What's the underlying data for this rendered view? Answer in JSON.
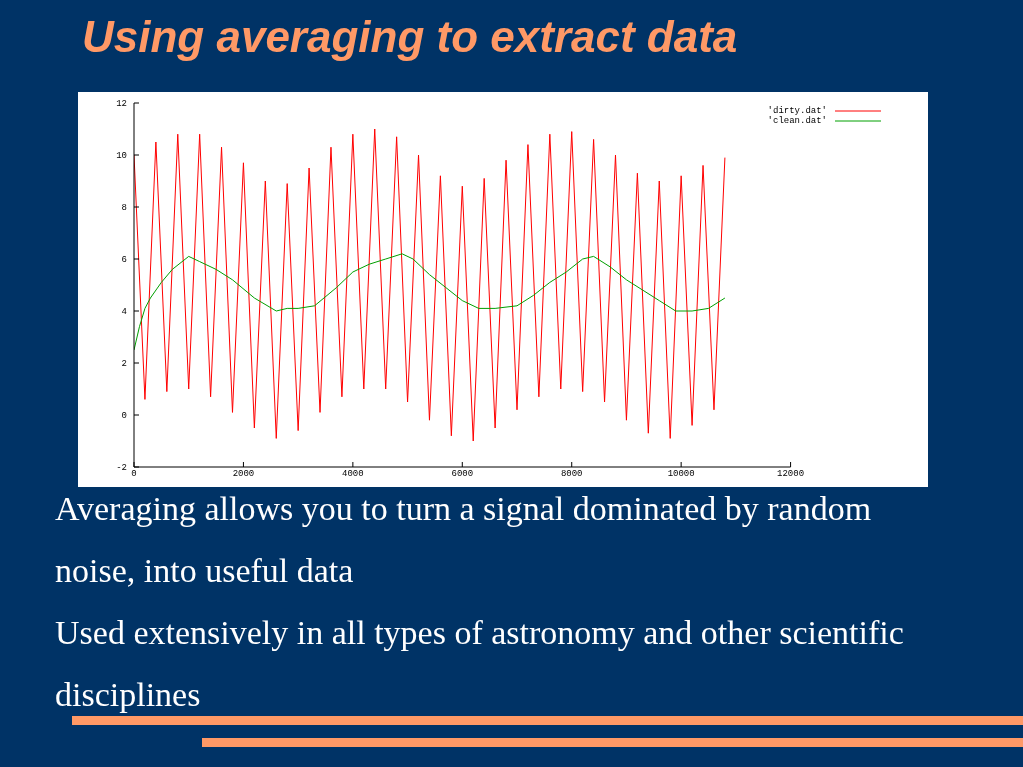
{
  "chart_data": {
    "type": "line",
    "title": "Using averaging to extract data",
    "annotations": [
      "Averaging allows you to turn a signal dominated by random noise, into useful data",
      "Used extensively in all types of astronomy and other scientific disciplines"
    ],
    "xlim": [
      0,
      12000
    ],
    "xticks": [
      0,
      2000,
      4000,
      6000,
      8000,
      10000,
      12000
    ],
    "ylim": [
      -2,
      12
    ],
    "yticks": [
      -2,
      0,
      2,
      4,
      6,
      8,
      10,
      12
    ],
    "legend": "top right",
    "series": [
      {
        "name": "'dirty.dat'",
        "color": "#ff0000",
        "x": [
          0,
          200,
          400,
          600,
          800,
          1000,
          1200,
          1400,
          1600,
          1800,
          2000,
          2200,
          2400,
          2600,
          2800,
          3000,
          3200,
          3400,
          3600,
          3800,
          4000,
          4200,
          4400,
          4600,
          4800,
          5000,
          5200,
          5400,
          5600,
          5800,
          6000,
          6200,
          6400,
          6600,
          6800,
          7000,
          7200,
          7400,
          7600,
          7800,
          8000,
          8200,
          8400,
          8600,
          8800,
          9000,
          9200,
          9400,
          9600,
          9800,
          10000,
          10200,
          10400,
          10600,
          10800
        ],
        "values": [
          10.0,
          0.6,
          10.5,
          0.9,
          10.8,
          1.0,
          10.8,
          0.7,
          10.3,
          0.1,
          9.7,
          -0.5,
          9.0,
          -0.9,
          8.9,
          -0.6,
          9.5,
          0.1,
          10.3,
          0.7,
          10.8,
          1.0,
          11.0,
          1.0,
          10.7,
          0.5,
          10.0,
          -0.2,
          9.2,
          -0.8,
          8.8,
          -1.0,
          9.1,
          -0.5,
          9.8,
          0.2,
          10.4,
          0.7,
          10.8,
          1.0,
          10.9,
          0.9,
          10.6,
          0.5,
          10.0,
          -0.2,
          9.3,
          -0.7,
          9.0,
          -0.9,
          9.2,
          -0.4,
          9.6,
          0.2,
          9.9
        ]
      },
      {
        "name": "'clean.dat'",
        "color": "#00a000",
        "x": [
          0,
          100,
          200,
          300,
          500,
          700,
          1000,
          1200,
          1500,
          1800,
          2200,
          2600,
          2800,
          3000,
          3300,
          3700,
          4000,
          4300,
          4600,
          4900,
          5100,
          5400,
          5700,
          6000,
          6300,
          6600,
          7000,
          7300,
          7600,
          7900,
          8200,
          8400,
          8700,
          9000,
          9300,
          9600,
          9900,
          10200,
          10500,
          10800
        ],
        "values": [
          2.5,
          3.4,
          4.1,
          4.5,
          5.1,
          5.6,
          6.1,
          5.9,
          5.6,
          5.2,
          4.5,
          4.0,
          4.1,
          4.1,
          4.2,
          4.9,
          5.5,
          5.8,
          6.0,
          6.2,
          6.0,
          5.4,
          4.9,
          4.4,
          4.1,
          4.1,
          4.2,
          4.6,
          5.1,
          5.5,
          6.0,
          6.1,
          5.7,
          5.2,
          4.8,
          4.4,
          4.0,
          4.0,
          4.1,
          4.5
        ]
      }
    ]
  }
}
